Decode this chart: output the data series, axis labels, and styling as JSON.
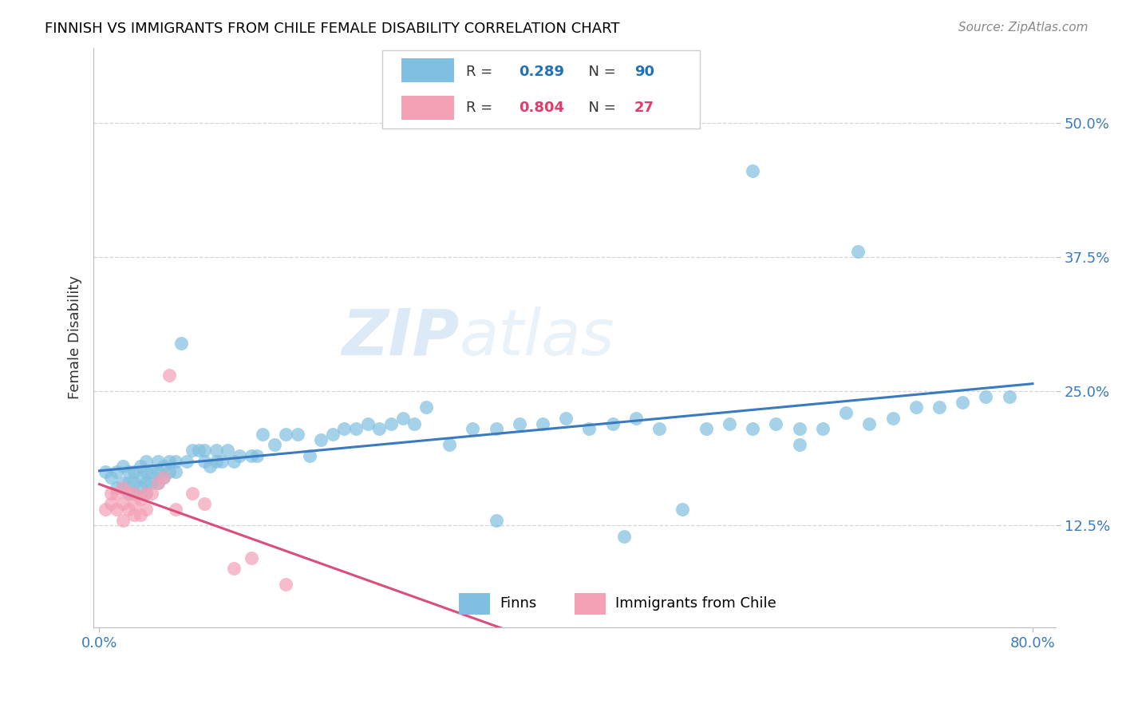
{
  "title": "FINNISH VS IMMIGRANTS FROM CHILE FEMALE DISABILITY CORRELATION CHART",
  "source": "Source: ZipAtlas.com",
  "ylabel": "Female Disability",
  "xlim": [
    -0.005,
    0.82
  ],
  "ylim": [
    0.03,
    0.57
  ],
  "blue_color": "#7fbfdf",
  "pink_color": "#f4a0b5",
  "blue_line_color": "#3a7abf",
  "pink_line_color": "#d94f7a",
  "watermark_zip": "ZIP",
  "watermark_atlas": "atlas",
  "finns_x": [
    0.005,
    0.01,
    0.015,
    0.015,
    0.02,
    0.02,
    0.025,
    0.025,
    0.025,
    0.03,
    0.03,
    0.03,
    0.035,
    0.035,
    0.035,
    0.04,
    0.04,
    0.04,
    0.04,
    0.045,
    0.045,
    0.05,
    0.05,
    0.05,
    0.055,
    0.055,
    0.06,
    0.06,
    0.065,
    0.065,
    0.07,
    0.075,
    0.08,
    0.085,
    0.09,
    0.09,
    0.095,
    0.1,
    0.1,
    0.105,
    0.11,
    0.115,
    0.12,
    0.13,
    0.135,
    0.14,
    0.15,
    0.16,
    0.17,
    0.18,
    0.19,
    0.2,
    0.21,
    0.22,
    0.23,
    0.24,
    0.25,
    0.26,
    0.27,
    0.28,
    0.3,
    0.32,
    0.34,
    0.36,
    0.38,
    0.4,
    0.42,
    0.44,
    0.46,
    0.48,
    0.5,
    0.52,
    0.54,
    0.56,
    0.58,
    0.6,
    0.62,
    0.64,
    0.66,
    0.68,
    0.7,
    0.72,
    0.74,
    0.76,
    0.78,
    0.56,
    0.6,
    0.65,
    0.34,
    0.45
  ],
  "finns_y": [
    0.175,
    0.17,
    0.16,
    0.175,
    0.165,
    0.18,
    0.155,
    0.165,
    0.175,
    0.155,
    0.165,
    0.175,
    0.16,
    0.17,
    0.18,
    0.155,
    0.165,
    0.175,
    0.185,
    0.165,
    0.175,
    0.165,
    0.175,
    0.185,
    0.17,
    0.18,
    0.175,
    0.185,
    0.175,
    0.185,
    0.295,
    0.185,
    0.195,
    0.195,
    0.185,
    0.195,
    0.18,
    0.185,
    0.195,
    0.185,
    0.195,
    0.185,
    0.19,
    0.19,
    0.19,
    0.21,
    0.2,
    0.21,
    0.21,
    0.19,
    0.205,
    0.21,
    0.215,
    0.215,
    0.22,
    0.215,
    0.22,
    0.225,
    0.22,
    0.235,
    0.2,
    0.215,
    0.215,
    0.22,
    0.22,
    0.225,
    0.215,
    0.22,
    0.225,
    0.215,
    0.14,
    0.215,
    0.22,
    0.215,
    0.22,
    0.215,
    0.215,
    0.23,
    0.22,
    0.225,
    0.235,
    0.235,
    0.24,
    0.245,
    0.245,
    0.455,
    0.2,
    0.38,
    0.13,
    0.115
  ],
  "chile_x": [
    0.005,
    0.01,
    0.01,
    0.015,
    0.015,
    0.02,
    0.02,
    0.02,
    0.025,
    0.025,
    0.03,
    0.03,
    0.03,
    0.035,
    0.035,
    0.04,
    0.04,
    0.045,
    0.05,
    0.055,
    0.06,
    0.065,
    0.08,
    0.09,
    0.115,
    0.13,
    0.16
  ],
  "chile_y": [
    0.14,
    0.145,
    0.155,
    0.14,
    0.155,
    0.13,
    0.145,
    0.16,
    0.14,
    0.155,
    0.135,
    0.145,
    0.155,
    0.135,
    0.15,
    0.14,
    0.155,
    0.155,
    0.165,
    0.17,
    0.265,
    0.14,
    0.155,
    0.145,
    0.085,
    0.095,
    0.07
  ]
}
